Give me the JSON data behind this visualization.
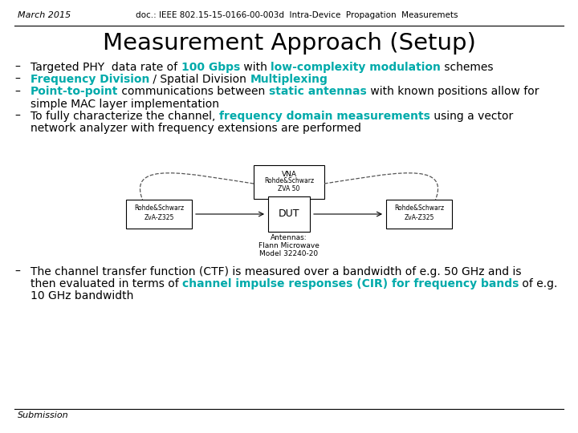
{
  "bg_color": "#ffffff",
  "header_left": "March 2015",
  "header_right": "doc.: IEEE 802.15-15-0166-00-003d  Intra-Device  Propagation  Measuremets",
  "title": "Measurement Approach (Setup)",
  "teal": "#00AAAA",
  "black": "#000000",
  "footer": "Submission",
  "fig_w": 7.2,
  "fig_h": 5.4,
  "dpi": 100
}
